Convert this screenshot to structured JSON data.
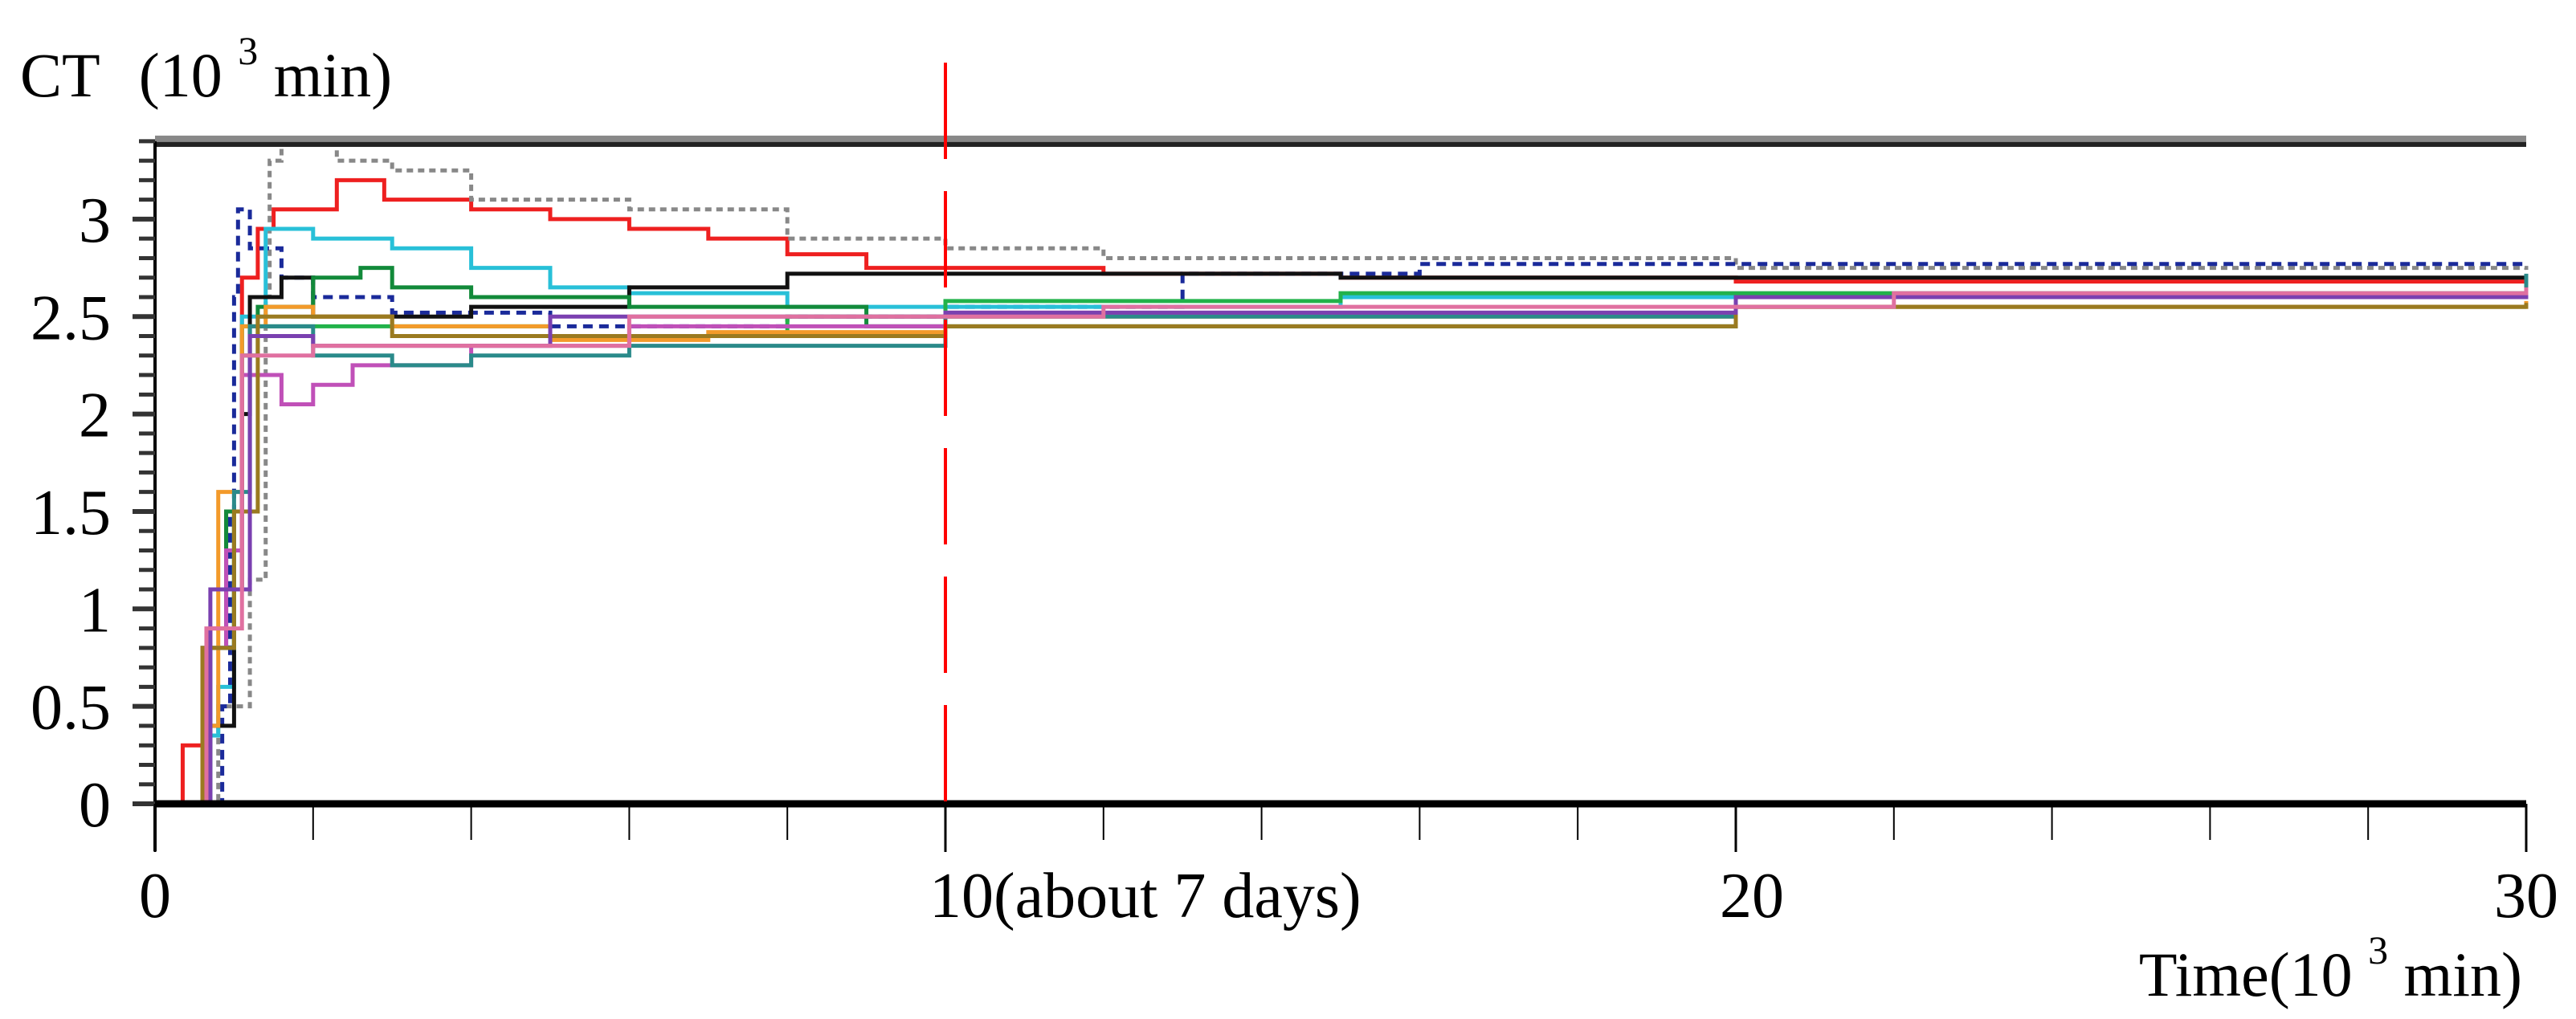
{
  "chart_data": {
    "type": "line",
    "title": "",
    "ylabel": "CT",
    "ylabel_unit_base": "(10",
    "ylabel_unit_exp": "3",
    "ylabel_unit_rest": "min)",
    "xlabel": "Time(10",
    "xlabel_exp": "3",
    "xlabel_rest": "min)",
    "xlim": [
      0,
      30
    ],
    "ylim": [
      0,
      3.4
    ],
    "grid": false,
    "yticks": [
      {
        "value": 0,
        "label": "0"
      },
      {
        "value": 0.5,
        "label": "0.5"
      },
      {
        "value": 1,
        "label": "1"
      },
      {
        "value": 1.5,
        "label": "1.5"
      },
      {
        "value": 2,
        "label": "2"
      },
      {
        "value": 2.5,
        "label": "2.5"
      },
      {
        "value": 3,
        "label": "3"
      }
    ],
    "xticks": [
      {
        "value": 0,
        "label": "0"
      },
      {
        "value": 10,
        "label": "10(about 7 days)"
      },
      {
        "value": 20,
        "label": "20"
      },
      {
        "value": 30,
        "label": "30"
      }
    ],
    "x_minor_step": 2,
    "reference_line": {
      "x": 10,
      "color": "#ff0000",
      "style": "dashed"
    },
    "series": [
      {
        "name": "run-red",
        "color": "#ee2020",
        "dash": "",
        "points": [
          [
            0,
            0
          ],
          [
            0.3,
            0
          ],
          [
            0.35,
            0.3
          ],
          [
            0.6,
            0.3
          ],
          [
            0.7,
            0.9
          ],
          [
            0.9,
            1.5
          ],
          [
            1.1,
            2.7
          ],
          [
            1.3,
            2.95
          ],
          [
            1.5,
            3.05
          ],
          [
            2.2,
            3.05
          ],
          [
            2.3,
            3.2
          ],
          [
            2.8,
            3.2
          ],
          [
            2.9,
            3.1
          ],
          [
            4,
            3.05
          ],
          [
            5,
            3.0
          ],
          [
            6,
            2.95
          ],
          [
            7,
            2.9
          ],
          [
            8,
            2.82
          ],
          [
            9,
            2.75
          ],
          [
            12,
            2.72
          ],
          [
            15,
            2.7
          ],
          [
            20,
            2.68
          ],
          [
            30,
            2.68
          ]
        ]
      },
      {
        "name": "run-gray",
        "color": "#888888",
        "dash": "8,6",
        "points": [
          [
            0.7,
            0
          ],
          [
            0.8,
            0.5
          ],
          [
            1.2,
            1.15
          ],
          [
            1.4,
            2.6
          ],
          [
            1.45,
            3.3
          ],
          [
            1.6,
            3.4
          ],
          [
            2.3,
            3.3
          ],
          [
            3,
            3.25
          ],
          [
            4,
            3.1
          ],
          [
            6,
            3.05
          ],
          [
            8,
            2.9
          ],
          [
            10,
            2.85
          ],
          [
            12,
            2.8
          ],
          [
            20,
            2.75
          ],
          [
            30,
            2.74
          ]
        ]
      },
      {
        "name": "run-navy",
        "color": "#1a2a9a",
        "dash": "12,8",
        "points": [
          [
            0.8,
            0
          ],
          [
            0.85,
            0.5
          ],
          [
            0.95,
            1.5
          ],
          [
            1.0,
            2.6
          ],
          [
            1.05,
            3.05
          ],
          [
            1.2,
            2.85
          ],
          [
            1.6,
            2.7
          ],
          [
            2,
            2.6
          ],
          [
            3,
            2.52
          ],
          [
            5,
            2.45
          ],
          [
            8,
            2.5
          ],
          [
            10,
            2.55
          ],
          [
            13,
            2.72
          ],
          [
            16,
            2.77
          ],
          [
            30,
            2.78
          ]
        ]
      },
      {
        "name": "run-cyan",
        "color": "#28c0d8",
        "dash": "",
        "points": [
          [
            0,
            0
          ],
          [
            0.55,
            0
          ],
          [
            0.6,
            0.35
          ],
          [
            0.8,
            0.6
          ],
          [
            1.0,
            1.5
          ],
          [
            1.1,
            2.5
          ],
          [
            1.4,
            2.95
          ],
          [
            2,
            2.9
          ],
          [
            3,
            2.85
          ],
          [
            4,
            2.75
          ],
          [
            5,
            2.65
          ],
          [
            6,
            2.62
          ],
          [
            8,
            2.55
          ],
          [
            10,
            2.55
          ],
          [
            15,
            2.6
          ],
          [
            30,
            2.63
          ]
        ]
      },
      {
        "name": "run-black",
        "color": "#111111",
        "dash": "",
        "points": [
          [
            0.4,
            0
          ],
          [
            0.7,
            0.4
          ],
          [
            1.0,
            1.1
          ],
          [
            1.1,
            2.0
          ],
          [
            1.2,
            2.6
          ],
          [
            1.6,
            2.7
          ],
          [
            2,
            2.5
          ],
          [
            4,
            2.55
          ],
          [
            6,
            2.65
          ],
          [
            8,
            2.72
          ],
          [
            10,
            2.72
          ],
          [
            15,
            2.7
          ],
          [
            30,
            2.66
          ]
        ]
      },
      {
        "name": "run-darkgreen",
        "color": "#128a3a",
        "dash": "",
        "points": [
          [
            0.5,
            0
          ],
          [
            0.6,
            0.8
          ],
          [
            0.9,
            1.5
          ],
          [
            1.1,
            2.3
          ],
          [
            1.3,
            2.55
          ],
          [
            2,
            2.7
          ],
          [
            2.6,
            2.75
          ],
          [
            3,
            2.65
          ],
          [
            4,
            2.6
          ],
          [
            6,
            2.55
          ],
          [
            9,
            2.45
          ],
          [
            11,
            2.45
          ],
          [
            20,
            2.55
          ],
          [
            30,
            2.55
          ]
        ]
      },
      {
        "name": "run-green",
        "color": "#22b24a",
        "dash": "",
        "points": [
          [
            0.5,
            0
          ],
          [
            0.6,
            0.8
          ],
          [
            1.0,
            1.5
          ],
          [
            1.1,
            2.45
          ],
          [
            1.5,
            2.45
          ],
          [
            3,
            2.45
          ],
          [
            5,
            2.4
          ],
          [
            8,
            2.5
          ],
          [
            10,
            2.58
          ],
          [
            15,
            2.62
          ],
          [
            30,
            2.6
          ]
        ]
      },
      {
        "name": "run-orange",
        "color": "#f39a2a",
        "dash": "",
        "points": [
          [
            0.4,
            0
          ],
          [
            0.6,
            0.4
          ],
          [
            0.8,
            1.6
          ],
          [
            1.1,
            2.45
          ],
          [
            1.4,
            2.55
          ],
          [
            2,
            2.5
          ],
          [
            3,
            2.45
          ],
          [
            5,
            2.38
          ],
          [
            7,
            2.42
          ],
          [
            10,
            2.5
          ],
          [
            20,
            2.55
          ],
          [
            30,
            2.58
          ]
        ]
      },
      {
        "name": "run-magenta",
        "color": "#c050b8",
        "dash": "",
        "points": [
          [
            0.45,
            0
          ],
          [
            0.6,
            0.8
          ],
          [
            0.9,
            1.3
          ],
          [
            1.1,
            2.2
          ],
          [
            1.6,
            2.05
          ],
          [
            2,
            2.15
          ],
          [
            2.5,
            2.25
          ],
          [
            4,
            2.35
          ],
          [
            6,
            2.45
          ],
          [
            10,
            2.52
          ],
          [
            20,
            2.6
          ],
          [
            30,
            2.64
          ]
        ]
      },
      {
        "name": "run-teal",
        "color": "#2a8a8a",
        "dash": "",
        "points": [
          [
            0.45,
            0
          ],
          [
            0.7,
            0.8
          ],
          [
            1.0,
            1.6
          ],
          [
            1.2,
            2.45
          ],
          [
            2,
            2.3
          ],
          [
            3,
            2.25
          ],
          [
            4,
            2.3
          ],
          [
            6,
            2.35
          ],
          [
            10,
            2.5
          ],
          [
            20,
            2.6
          ],
          [
            30,
            2.72
          ]
        ]
      },
      {
        "name": "run-olive",
        "color": "#9a7a20",
        "dash": "",
        "points": [
          [
            0.4,
            0
          ],
          [
            0.6,
            0.8
          ],
          [
            1.0,
            1.5
          ],
          [
            1.3,
            2.5
          ],
          [
            3,
            2.4
          ],
          [
            10,
            2.45
          ],
          [
            20,
            2.55
          ],
          [
            30,
            2.57
          ]
        ]
      },
      {
        "name": "run-purple",
        "color": "#7a40b0",
        "dash": "",
        "points": [
          [
            0.5,
            0
          ],
          [
            0.7,
            1.1
          ],
          [
            1.2,
            2.4
          ],
          [
            2,
            2.35
          ],
          [
            5,
            2.5
          ],
          [
            10,
            2.52
          ],
          [
            20,
            2.6
          ],
          [
            30,
            2.62
          ]
        ]
      },
      {
        "name": "run-pink",
        "color": "#e070a0",
        "dash": "",
        "points": [
          [
            0.45,
            0
          ],
          [
            0.65,
            0.9
          ],
          [
            1.1,
            2.3
          ],
          [
            2,
            2.35
          ],
          [
            6,
            2.5
          ],
          [
            12,
            2.55
          ],
          [
            22,
            2.62
          ],
          [
            30,
            2.65
          ]
        ]
      }
    ]
  }
}
